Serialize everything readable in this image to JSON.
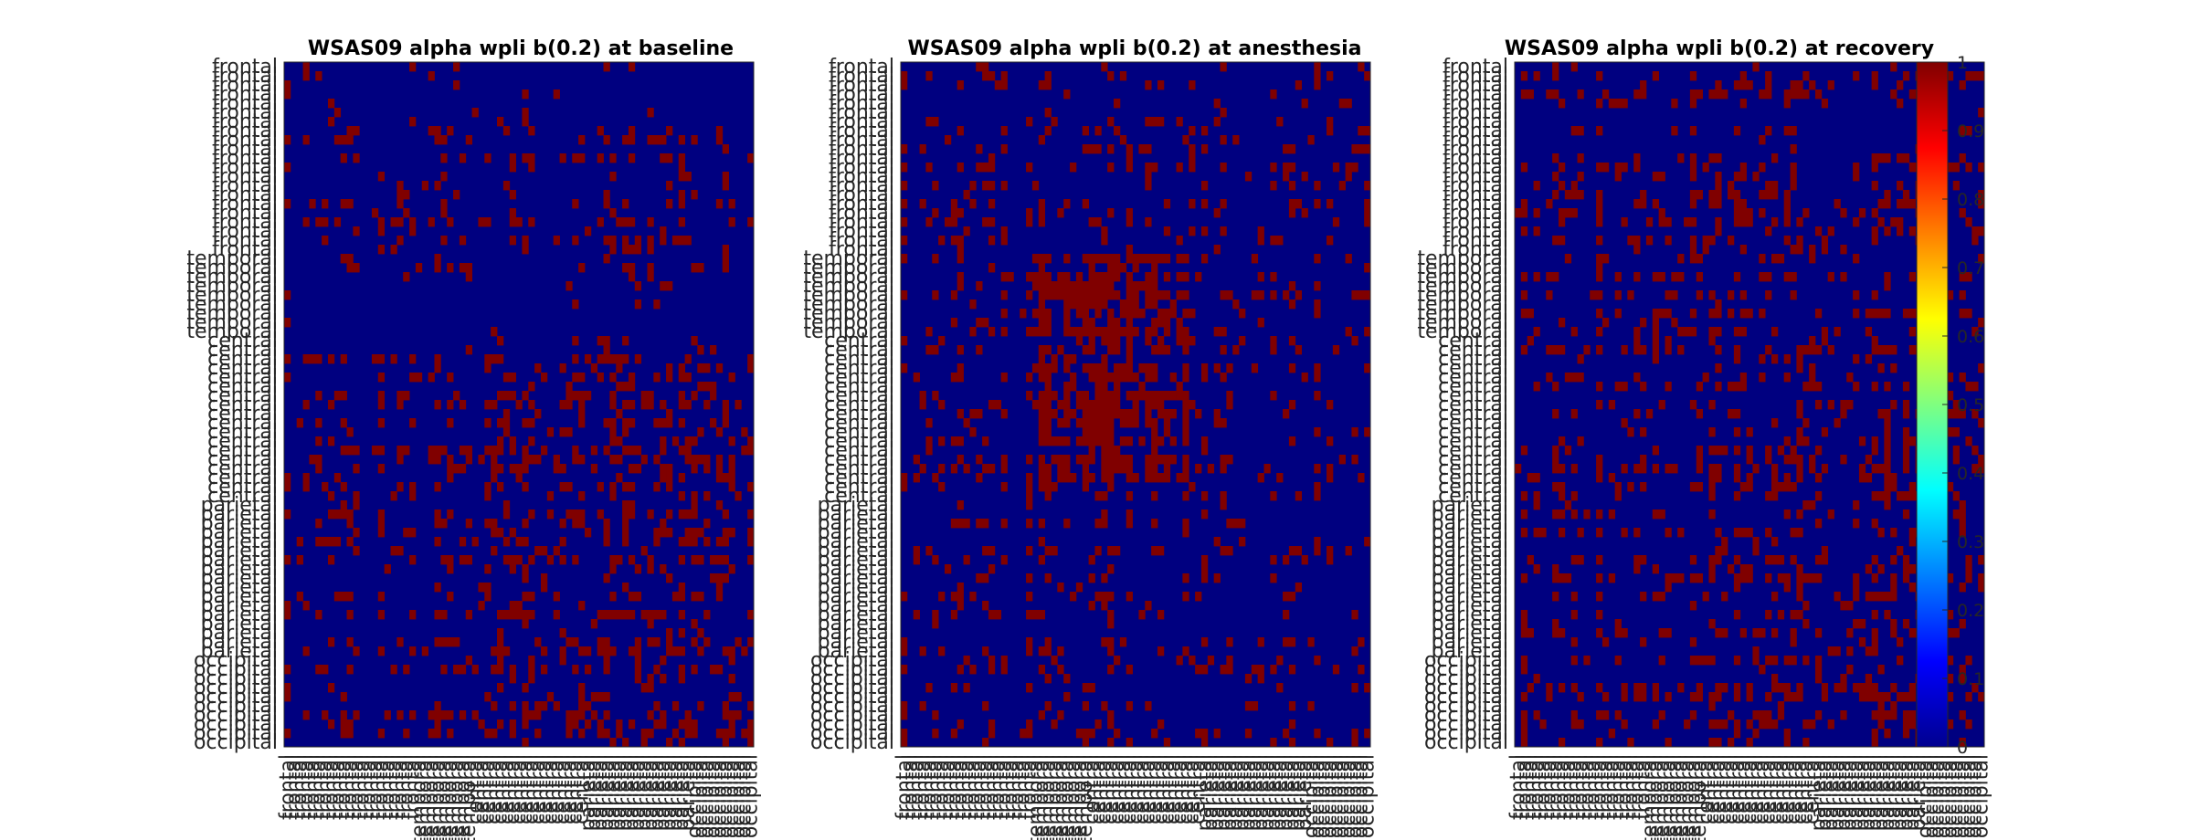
{
  "chart_data": {
    "type": "heatmap",
    "colormap": "jet",
    "cell_colors": {
      "zero": "#000080",
      "one": "#800000"
    },
    "clim": [
      0,
      1
    ],
    "colorbar_ticks": [
      "1",
      "0.9",
      "0.8",
      "0.7",
      "0.6",
      "0.5",
      "0.4",
      "0.3",
      "0.2",
      "0.1",
      "0"
    ],
    "panels": [
      {
        "title": "WSAS09 alpha wpli b(0.2) at baseline",
        "row_labels": [
          "frontal",
          "frontal",
          "frontal",
          "frontal",
          "frontal",
          "frontal",
          "frontal",
          "frontal",
          "frontal",
          "frontal",
          "frontal",
          "frontal",
          "frontal",
          "frontal",
          "frontal",
          "frontal",
          "frontal",
          "frontal",
          "frontal",
          "frontal",
          "frontal",
          "temporal",
          "temporal",
          "temporal",
          "temporal",
          "temporal",
          "temporal",
          "temporal",
          "temporal",
          "temporal",
          "central",
          "central",
          "central",
          "central",
          "central",
          "central",
          "central",
          "central",
          "central",
          "central",
          "central",
          "central",
          "central",
          "central",
          "central",
          "central",
          "central",
          "central",
          "parietal",
          "parietal",
          "parietal",
          "parietal",
          "parietal",
          "parietal",
          "parietal",
          "parietal",
          "parietal",
          "parietal",
          "parietal",
          "parietal",
          "parietal",
          "parietal",
          "parietal",
          "parietal",
          "parietal",
          "occipital",
          "occipital",
          "occipital",
          "occipital",
          "occipital",
          "occipital",
          "occipital",
          "occipital",
          "occipital",
          "occipital"
        ],
        "col_labels": [
          "frontal",
          "frontal",
          "frontal",
          "frontal",
          "frontal",
          "frontal",
          "frontal",
          "frontal",
          "frontal",
          "frontal",
          "frontal",
          "frontal",
          "frontal",
          "frontal",
          "frontal",
          "frontal",
          "frontal",
          "frontal",
          "frontal",
          "frontal",
          "frontal",
          "temporal",
          "temporal",
          "temporal",
          "temporal",
          "temporal",
          "temporal",
          "temporal",
          "temporal",
          "temporal",
          "central",
          "central",
          "central",
          "central",
          "central",
          "central",
          "central",
          "central",
          "central",
          "central",
          "central",
          "central",
          "central",
          "central",
          "central",
          "central",
          "central",
          "central",
          "parietal",
          "parietal",
          "parietal",
          "parietal",
          "parietal",
          "parietal",
          "parietal",
          "parietal",
          "parietal",
          "parietal",
          "parietal",
          "parietal",
          "parietal",
          "parietal",
          "parietal",
          "parietal",
          "parietal",
          "occipital",
          "occipital",
          "occipital",
          "occipital",
          "occipital",
          "occipital",
          "occipital",
          "occipital",
          "occipital",
          "occipital"
        ]
      },
      {
        "title": "WSAS09 alpha wpli b(0.2) at anesthesia",
        "row_labels": [
          "frontal",
          "frontal",
          "frontal",
          "frontal",
          "frontal",
          "frontal",
          "frontal",
          "frontal",
          "frontal",
          "frontal",
          "frontal",
          "frontal",
          "frontal",
          "frontal",
          "frontal",
          "frontal",
          "frontal",
          "frontal",
          "frontal",
          "frontal",
          "frontal",
          "temporal",
          "temporal",
          "temporal",
          "temporal",
          "temporal",
          "temporal",
          "temporal",
          "temporal",
          "temporal",
          "central",
          "central",
          "central",
          "central",
          "central",
          "central",
          "central",
          "central",
          "central",
          "central",
          "central",
          "central",
          "central",
          "central",
          "central",
          "central",
          "central",
          "central",
          "parietal",
          "parietal",
          "parietal",
          "parietal",
          "parietal",
          "parietal",
          "parietal",
          "parietal",
          "parietal",
          "parietal",
          "parietal",
          "parietal",
          "parietal",
          "parietal",
          "parietal",
          "parietal",
          "parietal",
          "occipital",
          "occipital",
          "occipital",
          "occipital",
          "occipital",
          "occipital",
          "occipital",
          "occipital",
          "occipital",
          "occipital"
        ],
        "col_labels": [
          "frontal",
          "frontal",
          "frontal",
          "frontal",
          "frontal",
          "frontal",
          "frontal",
          "frontal",
          "frontal",
          "frontal",
          "frontal",
          "frontal",
          "frontal",
          "frontal",
          "frontal",
          "frontal",
          "frontal",
          "frontal",
          "frontal",
          "frontal",
          "frontal",
          "temporal",
          "temporal",
          "temporal",
          "temporal",
          "temporal",
          "temporal",
          "temporal",
          "temporal",
          "temporal",
          "central",
          "central",
          "central",
          "central",
          "central",
          "central",
          "central",
          "central",
          "central",
          "central",
          "central",
          "central",
          "central",
          "central",
          "central",
          "central",
          "central",
          "central",
          "parietal",
          "parietal",
          "parietal",
          "parietal",
          "parietal",
          "parietal",
          "parietal",
          "parietal",
          "parietal",
          "parietal",
          "parietal",
          "parietal",
          "parietal",
          "parietal",
          "parietal",
          "parietal",
          "parietal",
          "occipital",
          "occipital",
          "occipital",
          "occipital",
          "occipital",
          "occipital",
          "occipital",
          "occipital",
          "occipital",
          "occipital"
        ]
      },
      {
        "title": "WSAS09 alpha wpli b(0.2) at recovery",
        "row_labels": [
          "frontal",
          "frontal",
          "frontal",
          "frontal",
          "frontal",
          "frontal",
          "frontal",
          "frontal",
          "frontal",
          "frontal",
          "frontal",
          "frontal",
          "frontal",
          "frontal",
          "frontal",
          "frontal",
          "frontal",
          "frontal",
          "frontal",
          "frontal",
          "frontal",
          "temporal",
          "temporal",
          "temporal",
          "temporal",
          "temporal",
          "temporal",
          "temporal",
          "temporal",
          "temporal",
          "central",
          "central",
          "central",
          "central",
          "central",
          "central",
          "central",
          "central",
          "central",
          "central",
          "central",
          "central",
          "central",
          "central",
          "central",
          "central",
          "central",
          "central",
          "parietal",
          "parietal",
          "parietal",
          "parietal",
          "parietal",
          "parietal",
          "parietal",
          "parietal",
          "parietal",
          "parietal",
          "parietal",
          "parietal",
          "parietal",
          "parietal",
          "parietal",
          "parietal",
          "parietal",
          "occipital",
          "occipital",
          "occipital",
          "occipital",
          "occipital",
          "occipital",
          "occipital",
          "occipital",
          "occipital",
          "occipital"
        ],
        "col_labels": [
          "frontal",
          "frontal",
          "frontal",
          "frontal",
          "frontal",
          "frontal",
          "frontal",
          "frontal",
          "frontal",
          "frontal",
          "frontal",
          "frontal",
          "frontal",
          "frontal",
          "frontal",
          "frontal",
          "frontal",
          "frontal",
          "frontal",
          "frontal",
          "frontal",
          "temporal",
          "temporal",
          "temporal",
          "temporal",
          "temporal",
          "temporal",
          "temporal",
          "temporal",
          "temporal",
          "central",
          "central",
          "central",
          "central",
          "central",
          "central",
          "central",
          "central",
          "central",
          "central",
          "central",
          "central",
          "central",
          "central",
          "central",
          "central",
          "central",
          "central",
          "parietal",
          "parietal",
          "parietal",
          "parietal",
          "parietal",
          "parietal",
          "parietal",
          "parietal",
          "parietal",
          "parietal",
          "parietal",
          "parietal",
          "parietal",
          "parietal",
          "parietal",
          "parietal",
          "parietal",
          "occipital",
          "occipital",
          "occipital",
          "occipital",
          "occipital",
          "occipital",
          "occipital",
          "occipital",
          "occipital",
          "occipital"
        ]
      }
    ]
  }
}
